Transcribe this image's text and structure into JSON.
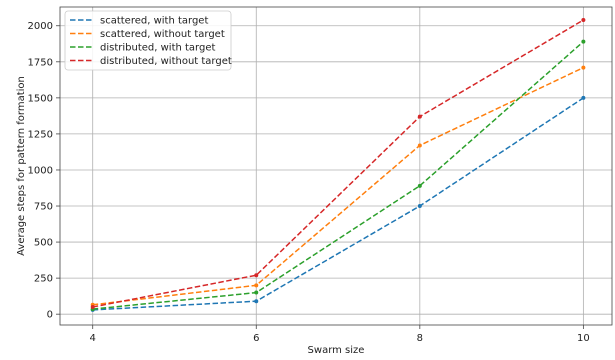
{
  "chart_data": {
    "type": "line",
    "xlabel": "Swarm size",
    "ylabel": "Average steps for pattern formation",
    "x": [
      4,
      6,
      8,
      10
    ],
    "xlim": [
      3.6,
      10.35
    ],
    "ylim": [
      -75,
      2130
    ],
    "xticks": [
      4,
      6,
      8,
      10
    ],
    "yticks": [
      0,
      250,
      500,
      750,
      1000,
      1250,
      1500,
      1750,
      2000
    ],
    "grid": true,
    "legend_position": "top-left",
    "series": [
      {
        "name": "scattered, with target",
        "color": "#1f77b4",
        "values": [
          30,
          90,
          750,
          1500
        ]
      },
      {
        "name": "scattered, without target",
        "color": "#ff7f0e",
        "values": [
          65,
          200,
          1170,
          1710
        ]
      },
      {
        "name": "distributed, with target",
        "color": "#2ca02c",
        "values": [
          35,
          150,
          890,
          1890
        ]
      },
      {
        "name": "distributed, without target",
        "color": "#d62728",
        "values": [
          50,
          270,
          1370,
          2040
        ]
      }
    ]
  }
}
